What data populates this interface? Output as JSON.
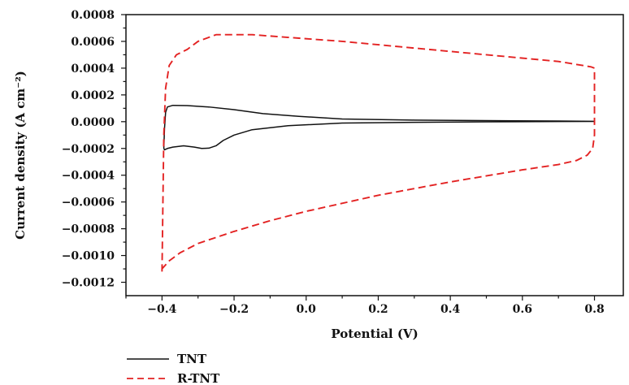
{
  "chart_data": {
    "type": "line",
    "xlabel": "Potential (V)",
    "ylabel": "Current density (A cm⁻²)",
    "xlim": [
      -0.5,
      0.88
    ],
    "ylim": [
      -0.0013,
      0.0008
    ],
    "x_ticks": [
      "−0.4",
      "−0.2",
      "0.0",
      "0.2",
      "0.4",
      "0.6",
      "0.8"
    ],
    "x_tick_values": [
      -0.4,
      -0.2,
      0.0,
      0.2,
      0.4,
      0.6,
      0.8
    ],
    "y_ticks": [
      "0.0008",
      "0.0006",
      "0.0004",
      "0.0002",
      "0.0000",
      "−0.0002",
      "−0.0004",
      "−0.0006",
      "−0.0008",
      "−0.0010",
      "−0.0012"
    ],
    "y_tick_values": [
      0.0008,
      0.0006,
      0.0004,
      0.0002,
      0.0,
      -0.0002,
      -0.0004,
      -0.0006,
      -0.0008,
      -0.001,
      -0.0012
    ],
    "grid": false,
    "legend_position": "bottom-left",
    "series": [
      {
        "name": "TNT",
        "color": "#111111",
        "style": "solid",
        "x": [
          -0.395,
          -0.393,
          -0.39,
          -0.385,
          -0.37,
          -0.33,
          -0.27,
          -0.2,
          -0.12,
          -0.02,
          0.1,
          0.3,
          0.5,
          0.7,
          0.8,
          0.8,
          0.7,
          0.5,
          0.3,
          0.1,
          -0.05,
          -0.15,
          -0.2,
          -0.23,
          -0.25,
          -0.27,
          -0.29,
          -0.31,
          -0.34,
          -0.37,
          -0.385,
          -0.393,
          -0.395
        ],
        "y": [
          -0.0002,
          -5e-05,
          7e-05,
          0.00011,
          0.000122,
          0.00012,
          0.00011,
          9e-05,
          6e-05,
          4e-05,
          2e-05,
          1.2e-05,
          8e-06,
          5e-06,
          3e-06,
          2e-06,
          1e-06,
          -1e-06,
          -5e-06,
          -1e-05,
          -3e-05,
          -6e-05,
          -0.0001,
          -0.00014,
          -0.00018,
          -0.000198,
          -0.0002,
          -0.00019,
          -0.00018,
          -0.00019,
          -0.0002,
          -0.00021,
          -0.0002
        ]
      },
      {
        "name": "R-TNT",
        "color": "#e32222",
        "style": "dashed",
        "x": [
          -0.4,
          -0.395,
          -0.39,
          -0.38,
          -0.36,
          -0.33,
          -0.3,
          -0.25,
          -0.15,
          -0.05,
          0.1,
          0.3,
          0.5,
          0.7,
          0.79,
          0.8,
          0.8,
          0.795,
          0.78,
          0.75,
          0.7,
          0.6,
          0.4,
          0.2,
          0.0,
          -0.1,
          -0.2,
          -0.3,
          -0.35,
          -0.38,
          -0.4,
          -0.4,
          -0.4
        ],
        "y": [
          -0.00112,
          -0.0001,
          0.00025,
          0.00042,
          0.0005,
          0.00054,
          0.0006,
          0.00065,
          0.00065,
          0.00063,
          0.0006,
          0.00055,
          0.0005,
          0.00045,
          0.00041,
          0.0004,
          -0.0001,
          -0.0002,
          -0.00025,
          -0.00029,
          -0.00032,
          -0.00036,
          -0.00045,
          -0.00055,
          -0.00067,
          -0.00074,
          -0.00082,
          -0.00091,
          -0.00098,
          -0.00104,
          -0.0011,
          -0.00112,
          -0.00112
        ]
      }
    ]
  }
}
